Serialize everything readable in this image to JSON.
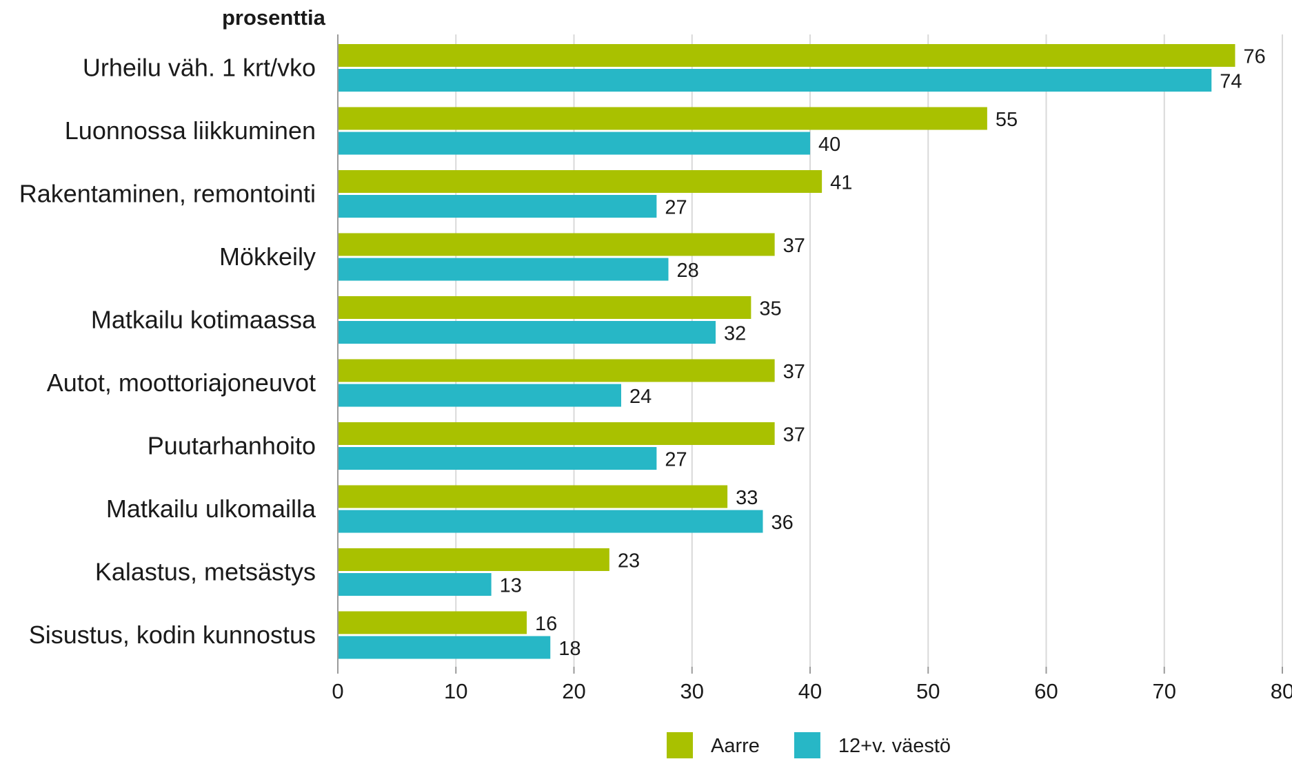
{
  "chart_data": {
    "type": "bar",
    "orientation": "horizontal",
    "unit_label": "prosenttia",
    "categories": [
      "Urheilu väh. 1 krt/vko",
      "Luonnossa liikkuminen",
      "Rakentaminen, remontointi",
      "Mökkeily",
      "Matkailu kotimaassa",
      "Autot, moottoriajoneuvot",
      "Puutarhanhoito",
      "Matkailu ulkomailla",
      "Kalastus, metsästys",
      "Sisustus, kodin kunnostus"
    ],
    "series": [
      {
        "name": "Aarre",
        "color": "#a9c100",
        "values": [
          76,
          55,
          41,
          37,
          35,
          37,
          37,
          33,
          23,
          16
        ]
      },
      {
        "name": "12+v. väestö",
        "color": "#27b7c6",
        "values": [
          74,
          40,
          27,
          28,
          32,
          24,
          27,
          36,
          13,
          18
        ]
      }
    ],
    "xlim": [
      0,
      80
    ],
    "xticks": [
      0,
      10,
      20,
      30,
      40,
      50,
      60,
      70,
      80
    ],
    "grid": true,
    "legend": "bottom-right"
  }
}
